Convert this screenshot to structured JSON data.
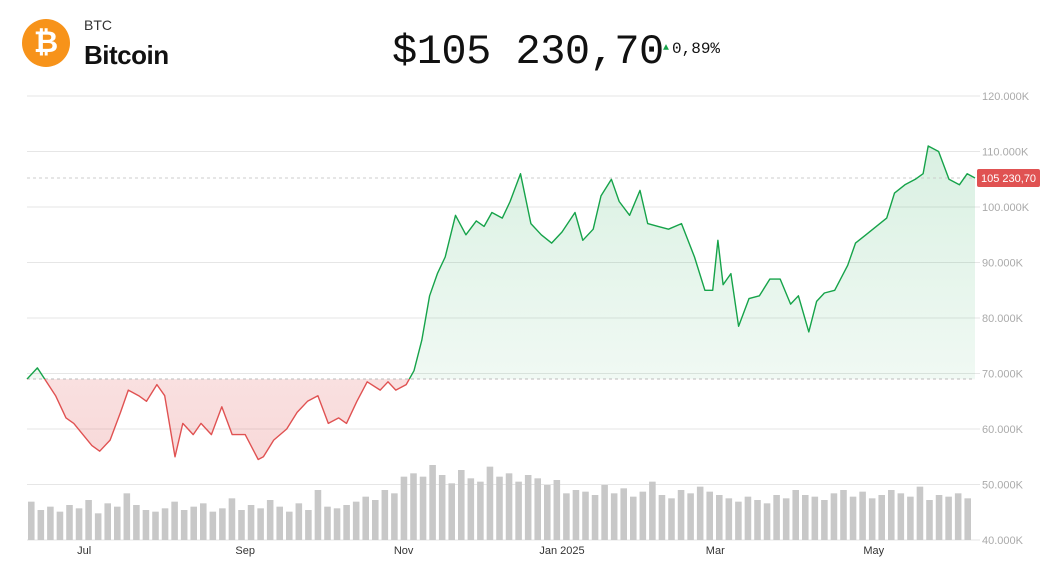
{
  "asset": {
    "ticker": "BTC",
    "name": "Bitcoin",
    "logo_glyph": "₿",
    "logo_color": "#f7931a",
    "price": "$105 230,70",
    "change": "0,89%",
    "change_direction": "up"
  },
  "colors": {
    "up": "#16a34a",
    "down": "#e05252",
    "label_bg": "#e05252",
    "volume": "#c8c8c8",
    "grid": "#e6e6e6"
  },
  "chart_data": {
    "type": "area",
    "baseline_price": 69000,
    "current_label": "105 230,70",
    "current_value": 105230.7,
    "y_ticks": [
      "120.000K",
      "110.000K",
      "100.000K",
      "90.000K",
      "80.000K",
      "70.000K",
      "60.000K",
      "50.000K",
      "40.000K"
    ],
    "y_tick_values": [
      120000,
      110000,
      100000,
      90000,
      80000,
      70000,
      60000,
      50000,
      40000
    ],
    "ylim": [
      40000,
      120000
    ],
    "x_ticks": [
      "Jul",
      "Sep",
      "Nov",
      "Jan 2025",
      "Mar",
      "May"
    ],
    "x_tick_dates": [
      "2024-07-01",
      "2024-09-01",
      "2024-11-01",
      "2025-01-01",
      "2025-03-01",
      "2025-05-01"
    ],
    "x_range": [
      "2024-06-09",
      "2025-06-09"
    ],
    "grid": true,
    "series": [
      {
        "x": [
          "2024-06-09",
          "2024-06-13",
          "2024-06-20",
          "2024-06-24",
          "2024-06-27",
          "2024-07-04",
          "2024-07-07",
          "2024-07-11",
          "2024-07-15",
          "2024-07-18",
          "2024-07-22",
          "2024-07-25",
          "2024-07-29",
          "2024-08-01",
          "2024-08-05",
          "2024-08-08",
          "2024-08-12",
          "2024-08-15",
          "2024-08-19",
          "2024-08-23",
          "2024-08-27",
          "2024-09-01",
          "2024-09-06",
          "2024-09-08",
          "2024-09-12",
          "2024-09-17",
          "2024-09-21",
          "2024-09-25",
          "2024-09-29",
          "2024-10-03",
          "2024-10-07",
          "2024-10-10",
          "2024-10-14",
          "2024-10-18",
          "2024-10-23",
          "2024-10-26",
          "2024-10-29",
          "2024-11-02",
          "2024-11-05",
          "2024-11-08",
          "2024-11-11",
          "2024-11-14",
          "2024-11-17",
          "2024-11-21",
          "2024-11-25",
          "2024-11-29",
          "2024-12-02",
          "2024-12-05",
          "2024-12-09",
          "2024-12-12",
          "2024-12-16",
          "2024-12-20",
          "2024-12-24",
          "2024-12-28",
          "2025-01-01",
          "2025-01-06",
          "2025-01-09",
          "2025-01-13",
          "2025-01-16",
          "2025-01-20",
          "2025-01-23",
          "2025-01-27",
          "2025-01-31",
          "2025-02-03",
          "2025-02-07",
          "2025-02-11",
          "2025-02-16",
          "2025-02-21",
          "2025-02-25",
          "2025-02-28",
          "2025-03-02",
          "2025-03-04",
          "2025-03-07",
          "2025-03-10",
          "2025-03-14",
          "2025-03-18",
          "2025-03-22",
          "2025-03-26",
          "2025-03-30",
          "2025-04-02",
          "2025-04-06",
          "2025-04-09",
          "2025-04-12",
          "2025-04-16",
          "2025-04-21",
          "2025-04-24",
          "2025-04-28",
          "2025-05-02",
          "2025-05-06",
          "2025-05-09",
          "2025-05-13",
          "2025-05-17",
          "2025-05-20",
          "2025-05-22",
          "2025-05-26",
          "2025-05-30",
          "2025-06-03",
          "2025-06-06",
          "2025-06-09"
        ],
        "values": [
          69000,
          71000,
          66000,
          62000,
          61000,
          57000,
          56000,
          58000,
          63000,
          67000,
          66000,
          65000,
          68000,
          66000,
          55000,
          61000,
          59000,
          61000,
          59000,
          64000,
          59000,
          59000,
          54500,
          55000,
          58000,
          60000,
          63000,
          65000,
          66000,
          61000,
          62000,
          61000,
          65000,
          68500,
          67000,
          68500,
          67000,
          68000,
          70500,
          76000,
          84000,
          88000,
          91000,
          98500,
          95000,
          97500,
          96500,
          99000,
          98000,
          101000,
          106000,
          97000,
          95000,
          93500,
          95500,
          99000,
          94000,
          96000,
          102000,
          105000,
          101000,
          98500,
          103000,
          97000,
          96500,
          96000,
          97000,
          91000,
          85000,
          85000,
          94000,
          86000,
          88000,
          78500,
          83500,
          84000,
          87000,
          87000,
          82500,
          84000,
          77500,
          83000,
          84500,
          85000,
          89500,
          93500,
          95000,
          96500,
          98000,
          102500,
          104000,
          105000,
          106000,
          111000,
          110000,
          105000,
          104000,
          106000,
          105230.7
        ]
      }
    ],
    "volume": [
      23,
      18,
      20,
      17,
      21,
      19,
      24,
      16,
      22,
      20,
      28,
      21,
      18,
      17,
      19,
      23,
      18,
      20,
      22,
      17,
      19,
      25,
      18,
      21,
      19,
      24,
      20,
      17,
      22,
      18,
      30,
      20,
      19,
      21,
      23,
      26,
      24,
      30,
      28,
      38,
      40,
      38,
      45,
      39,
      34,
      42,
      37,
      35,
      44,
      38,
      40,
      35,
      39,
      37,
      33,
      36,
      28,
      30,
      29,
      27,
      33,
      28,
      31,
      26,
      29,
      35,
      27,
      25,
      30,
      28,
      32,
      29,
      27,
      25,
      23,
      26,
      24,
      22,
      27,
      25,
      30,
      27,
      26,
      24,
      28,
      30,
      26,
      29,
      25,
      27,
      30,
      28,
      26,
      32,
      24,
      27,
      26,
      28,
      25
    ]
  }
}
